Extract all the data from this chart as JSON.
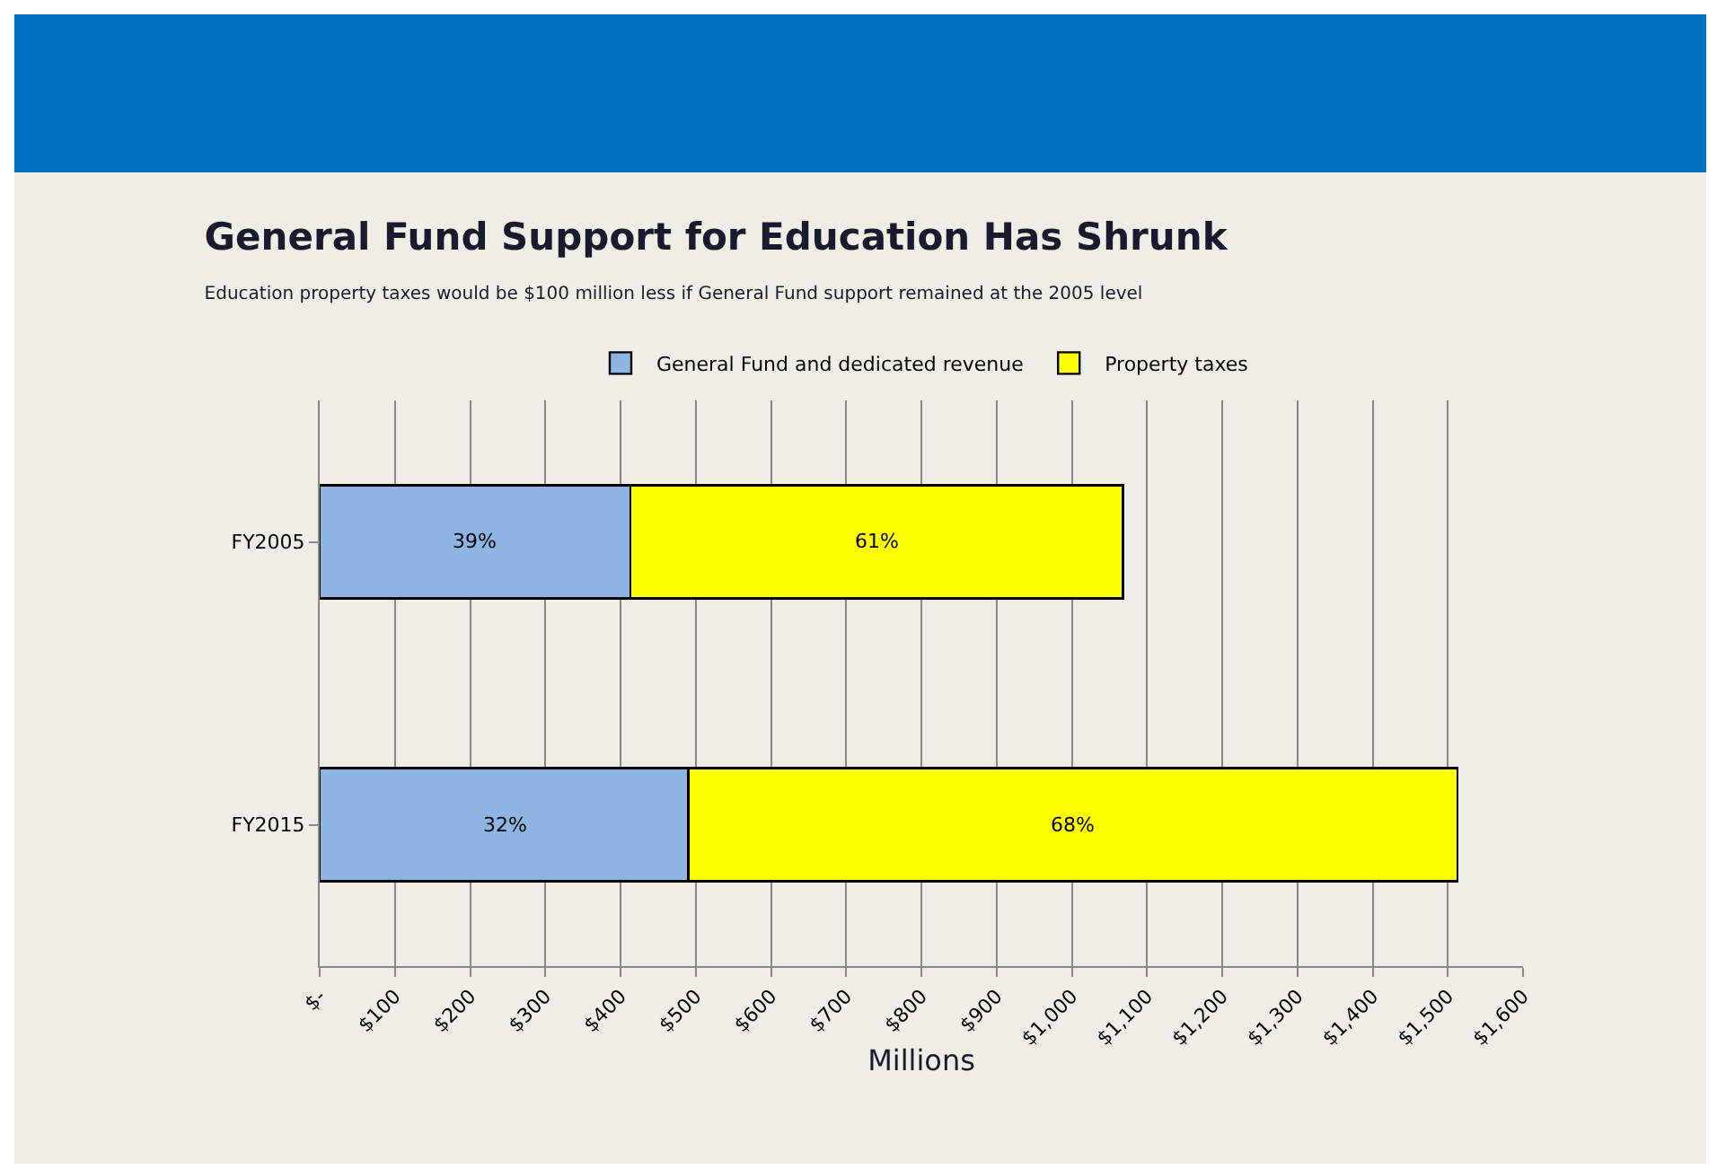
{
  "chart_data": {
    "type": "bar",
    "orientation": "horizontal",
    "stacked": true,
    "title": "General Fund Support for Education Has Shrunk",
    "subtitle": "Education property taxes would be $100 million less if General Fund support remained at the 2005 level",
    "xlabel": "Millions",
    "categories": [
      "FY2005",
      "FY2015"
    ],
    "series": [
      {
        "name": "General Fund and dedicated revenue",
        "color": "#8eb4e3",
        "values": [
          413,
          490
        ]
      },
      {
        "name": "Property taxes",
        "color": "#ffff00",
        "values": [
          655,
          1023
        ]
      }
    ],
    "annotations": [
      "39%",
      "61%",
      "32%",
      "68%"
    ],
    "xlim": [
      0,
      1600
    ],
    "xticks": [
      {
        "value": 0,
        "label": "$-"
      },
      {
        "value": 100,
        "label": "$100"
      },
      {
        "value": 200,
        "label": "$200"
      },
      {
        "value": 300,
        "label": "$300"
      },
      {
        "value": 400,
        "label": "$400"
      },
      {
        "value": 500,
        "label": "$500"
      },
      {
        "value": 600,
        "label": "$600"
      },
      {
        "value": 700,
        "label": "$700"
      },
      {
        "value": 800,
        "label": "$800"
      },
      {
        "value": 900,
        "label": "$900"
      },
      {
        "value": 1000,
        "label": "$1,000"
      },
      {
        "value": 1100,
        "label": "$1,100"
      },
      {
        "value": 1200,
        "label": "$1,200"
      },
      {
        "value": 1300,
        "label": "$1,300"
      },
      {
        "value": 1400,
        "label": "$1,400"
      },
      {
        "value": 1500,
        "label": "$1,500"
      },
      {
        "value": 1600,
        "label": "$1,600"
      }
    ],
    "grid": "x",
    "legend": "top"
  }
}
